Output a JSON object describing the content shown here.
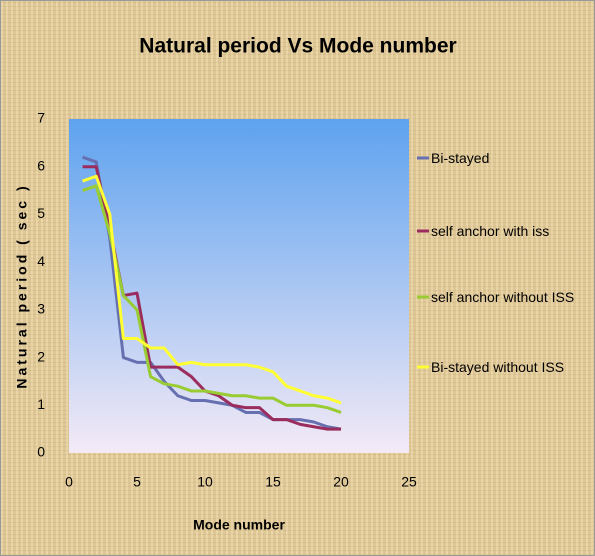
{
  "chart_data": {
    "type": "line",
    "title": "Natural period Vs Mode number",
    "x_label": "Mode number",
    "y_label": "Natural period ( sec )",
    "x": [
      1,
      2,
      3,
      4,
      5,
      6,
      7,
      8,
      9,
      10,
      11,
      12,
      13,
      14,
      15,
      16,
      17,
      18,
      19,
      20
    ],
    "series": [
      {
        "name": "Bi-stayed",
        "color": "#6670b0",
        "values": [
          6.2,
          6.1,
          4.5,
          2.0,
          1.9,
          1.9,
          1.5,
          1.2,
          1.1,
          1.1,
          1.05,
          1.0,
          0.85,
          0.85,
          0.7,
          0.7,
          0.7,
          0.65,
          0.55,
          0.5
        ]
      },
      {
        "name": "self anchor with iss",
        "color": "#9b2d5e",
        "values": [
          6.0,
          6.0,
          4.7,
          3.3,
          3.35,
          1.8,
          1.8,
          1.8,
          1.6,
          1.3,
          1.2,
          1.0,
          0.95,
          0.95,
          0.7,
          0.7,
          0.6,
          0.55,
          0.5,
          0.5
        ]
      },
      {
        "name": "self anchor without ISS",
        "color": "#99cc33",
        "values": [
          5.5,
          5.6,
          4.6,
          3.3,
          3.0,
          1.6,
          1.45,
          1.4,
          1.3,
          1.3,
          1.25,
          1.2,
          1.2,
          1.15,
          1.15,
          1.0,
          1.0,
          1.0,
          0.95,
          0.85
        ]
      },
      {
        "name": "Bi-stayed without ISS",
        "color": "#ffff33",
        "values": [
          5.7,
          5.8,
          5.0,
          2.4,
          2.4,
          2.2,
          2.2,
          1.85,
          1.9,
          1.85,
          1.85,
          1.85,
          1.85,
          1.8,
          1.7,
          1.4,
          1.3,
          1.2,
          1.15,
          1.05
        ]
      }
    ],
    "xlim": [
      0,
      25
    ],
    "xticks": [
      0,
      5,
      10,
      15,
      20,
      25
    ],
    "ylim": [
      0,
      7
    ],
    "yticks": [
      0,
      1,
      2,
      3,
      4,
      5,
      6,
      7
    ],
    "legend": "right"
  }
}
